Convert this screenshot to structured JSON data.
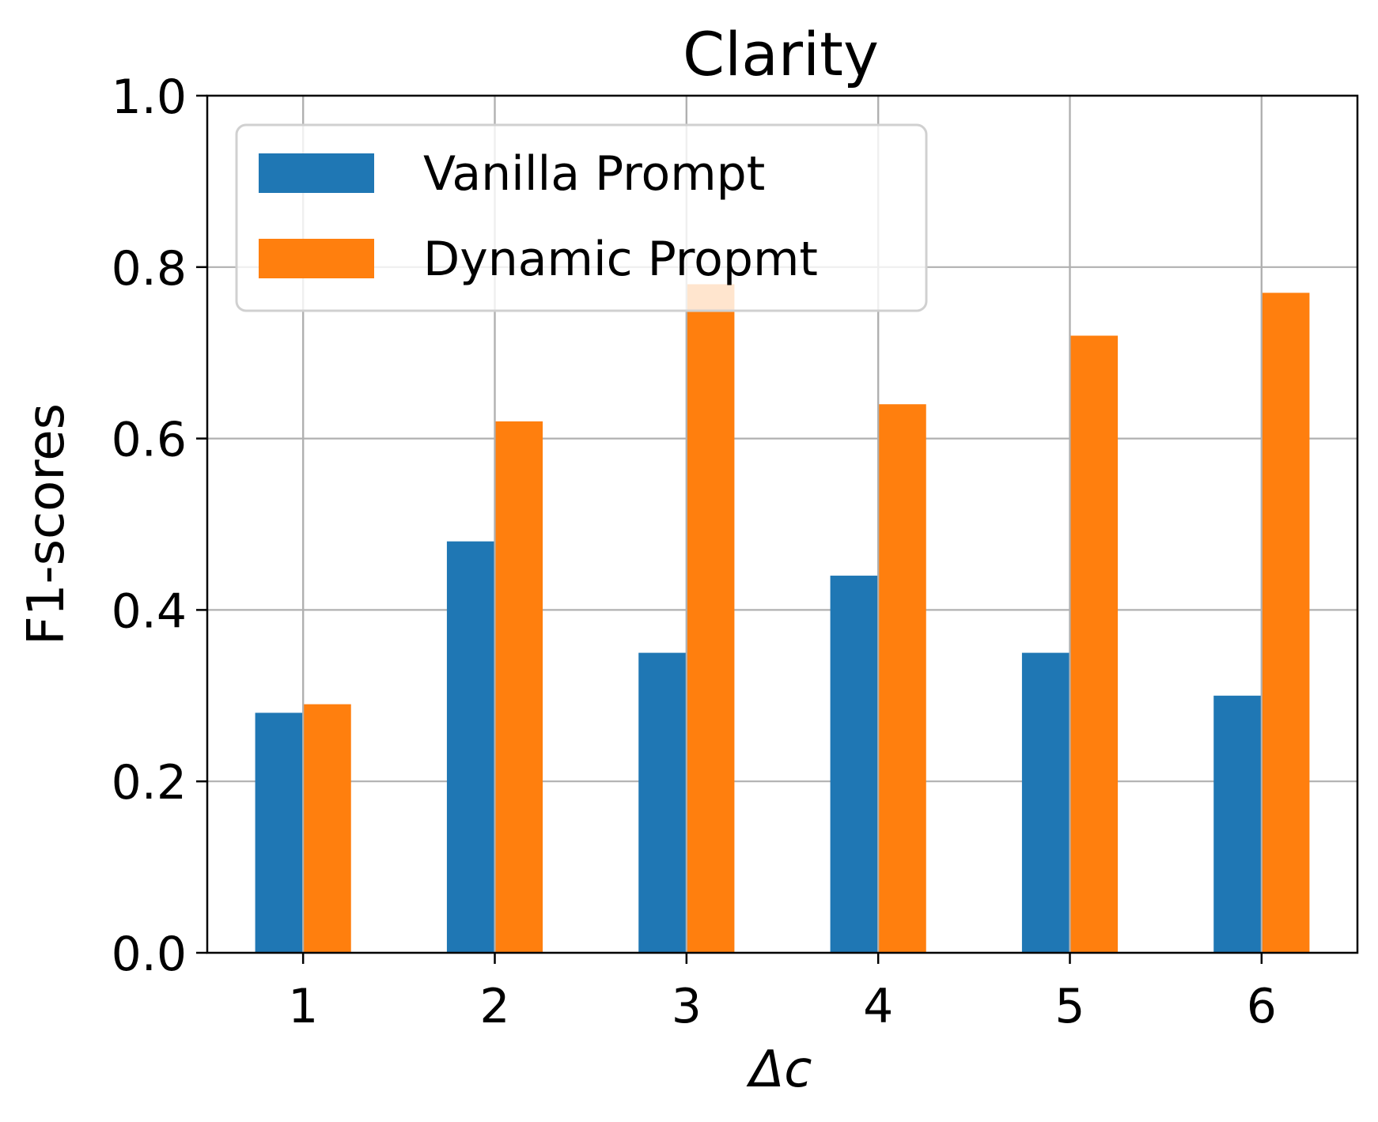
{
  "chart_data": {
    "type": "bar",
    "title": "Clarity",
    "xlabel": "Δc",
    "ylabel": "F1-scores",
    "categories": [
      "1",
      "2",
      "3",
      "4",
      "5",
      "6"
    ],
    "series": [
      {
        "name": "Vanilla Prompt",
        "color": "#1f77b4",
        "values": [
          0.28,
          0.48,
          0.35,
          0.44,
          0.35,
          0.3
        ]
      },
      {
        "name": "Dynamic Propmt",
        "color": "#ff7f0e",
        "values": [
          0.29,
          0.62,
          0.78,
          0.64,
          0.72,
          0.77
        ]
      }
    ],
    "ylim": [
      0,
      1.0
    ],
    "yticks": [
      "0.0",
      "0.2",
      "0.4",
      "0.6",
      "0.8",
      "1.0"
    ],
    "grid": true,
    "legend_position": "upper-left"
  }
}
